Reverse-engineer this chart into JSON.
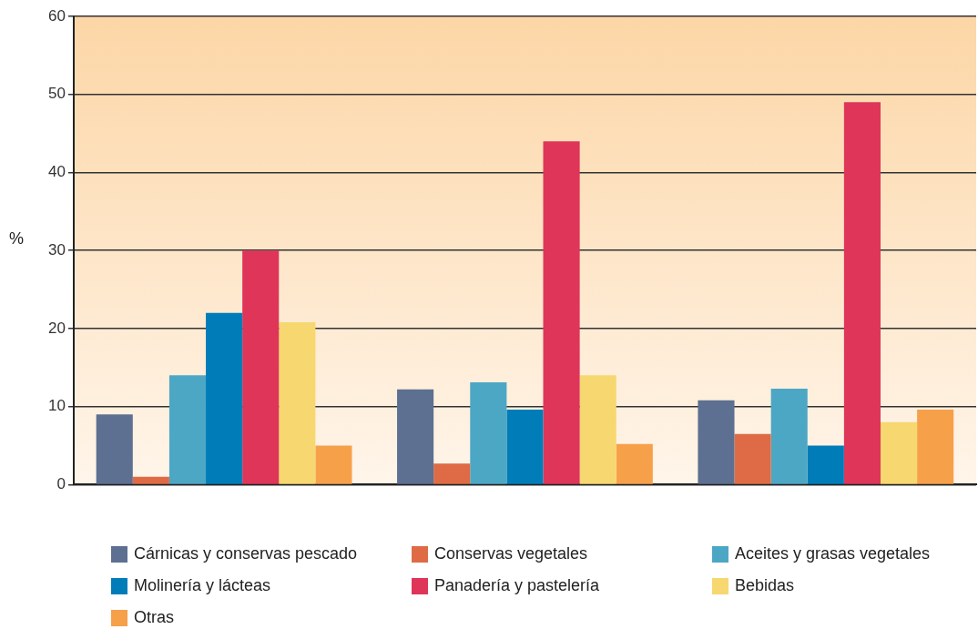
{
  "chart_data": {
    "type": "bar",
    "ylabel": "%",
    "categories": [
      null,
      null,
      null
    ],
    "series": [
      {
        "name": "Cárnicas y conservas pescado",
        "color": "#5d7091",
        "values": [
          9,
          12.2,
          10.8
        ]
      },
      {
        "name": "Conservas vegetales",
        "color": "#de6b45",
        "values": [
          1,
          2.7,
          6.5
        ]
      },
      {
        "name": "Aceites y grasas vegetales",
        "color": "#4ca7c4",
        "values": [
          14,
          13.1,
          12.3
        ]
      },
      {
        "name": "Molinería y lácteas",
        "color": "#007db8",
        "values": [
          22,
          9.6,
          5
        ]
      },
      {
        "name": "Panadería y pastelería",
        "color": "#de3559",
        "values": [
          30,
          44,
          49
        ]
      },
      {
        "name": "Bebidas",
        "color": "#f7d76f",
        "values": [
          20.8,
          14,
          8
        ]
      },
      {
        "name": "Otras",
        "color": "#f7a04a",
        "values": [
          5,
          5.2,
          9.6
        ]
      }
    ],
    "ylim": [
      0,
      60
    ],
    "yticks": [
      0,
      10,
      20,
      30,
      40,
      50,
      60
    ],
    "grid": "y",
    "legend": "bottom"
  }
}
